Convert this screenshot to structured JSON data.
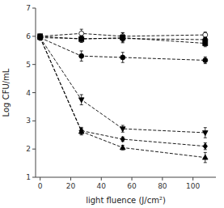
{
  "chart_data": {
    "type": "line",
    "xlabel": "light fluence (J/cm²)",
    "ylabel": "Log CFU/mL",
    "x": [
      0,
      27,
      54,
      108
    ],
    "xlim": [
      -3,
      115
    ],
    "xticks": [
      0,
      20,
      40,
      60,
      80,
      100
    ],
    "ylim": [
      1,
      7
    ],
    "yticks": [
      1,
      2,
      3,
      4,
      5,
      6,
      7
    ],
    "grid": false,
    "color": "black",
    "line_style": "dashed",
    "series": [
      {
        "marker": "circle-open",
        "values": [
          6.0,
          6.1,
          6.0,
          6.05
        ],
        "errors": [
          0.05,
          0.15,
          0.12,
          0.1
        ]
      },
      {
        "marker": "hexagon",
        "values": [
          5.95,
          5.92,
          5.92,
          5.88
        ],
        "errors": [
          0.05,
          0.08,
          0.12,
          0.08
        ]
      },
      {
        "marker": "square",
        "values": [
          6.0,
          5.9,
          5.95,
          5.75
        ],
        "errors": [
          0.05,
          0.12,
          0.18,
          0.12
        ]
      },
      {
        "marker": "circle",
        "values": [
          5.95,
          5.3,
          5.25,
          5.15
        ],
        "errors": [
          0.05,
          0.18,
          0.18,
          0.12
        ]
      },
      {
        "marker": "triangle-down",
        "values": [
          5.95,
          3.75,
          2.72,
          2.58
        ],
        "errors": [
          0.05,
          0.18,
          0.12,
          0.18
        ]
      },
      {
        "marker": "diamond",
        "values": [
          5.95,
          2.65,
          2.35,
          2.1
        ],
        "errors": [
          0.05,
          0.12,
          0.08,
          0.12
        ]
      },
      {
        "marker": "triangle-up",
        "values": [
          5.95,
          2.62,
          2.05,
          1.7
        ],
        "errors": [
          0.05,
          0.12,
          0.08,
          0.18
        ]
      }
    ]
  }
}
